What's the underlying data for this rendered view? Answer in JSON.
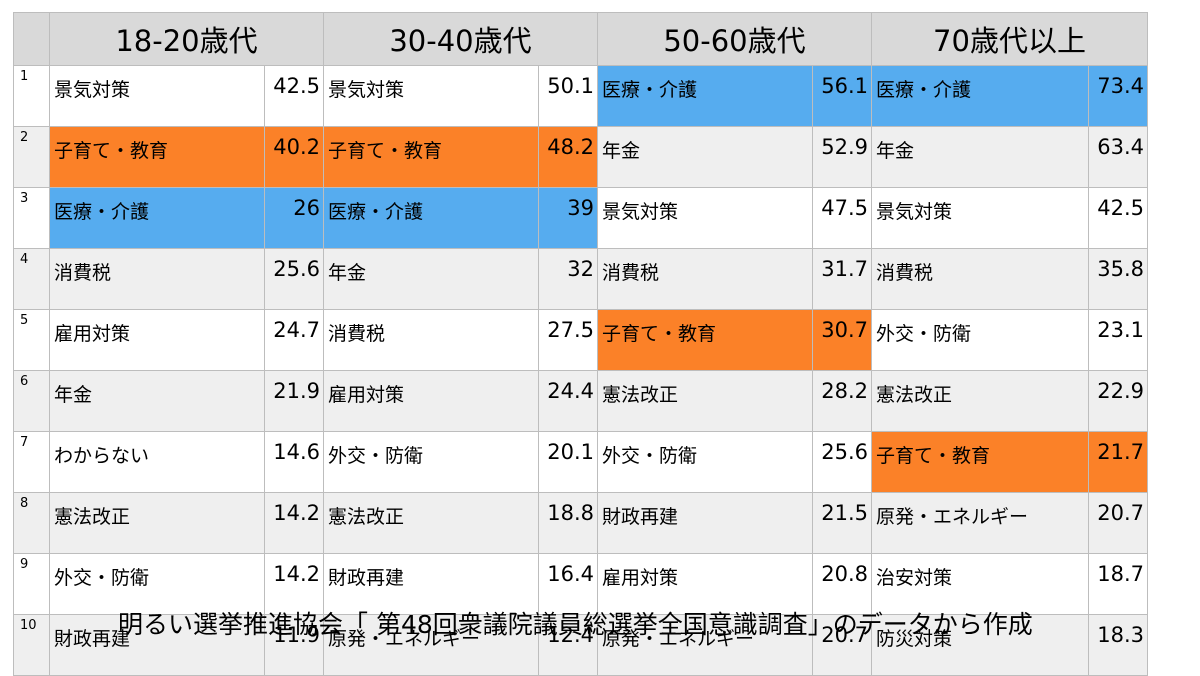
{
  "chart_data": {
    "type": "table",
    "title": "",
    "columns": [
      "18-20歳代",
      "30-40歳代",
      "50-60歳代",
      "70歳代以上"
    ],
    "ranks": [
      "1",
      "2",
      "3",
      "4",
      "5",
      "6",
      "7",
      "8",
      "9",
      "10"
    ],
    "series": [
      {
        "name": "18-20歳代",
        "rows": [
          {
            "item": "景気対策",
            "value": "42.5"
          },
          {
            "item": "子育て・教育",
            "value": "40.2"
          },
          {
            "item": "医療・介護",
            "value": "26"
          },
          {
            "item": "消費税",
            "value": "25.6"
          },
          {
            "item": "雇用対策",
            "value": "24.7"
          },
          {
            "item": "年金",
            "value": "21.9"
          },
          {
            "item": "わからない",
            "value": "14.6"
          },
          {
            "item": "憲法改正",
            "value": "14.2"
          },
          {
            "item": "外交・防衛",
            "value": "14.2"
          },
          {
            "item": "財政再建",
            "value": "11.9"
          }
        ]
      },
      {
        "name": "30-40歳代",
        "rows": [
          {
            "item": "景気対策",
            "value": "50.1"
          },
          {
            "item": "子育て・教育",
            "value": "48.2"
          },
          {
            "item": "医療・介護",
            "value": "39"
          },
          {
            "item": "年金",
            "value": "32"
          },
          {
            "item": "消費税",
            "value": "27.5"
          },
          {
            "item": "雇用対策",
            "value": "24.4"
          },
          {
            "item": "外交・防衛",
            "value": "20.1"
          },
          {
            "item": "憲法改正",
            "value": "18.8"
          },
          {
            "item": "財政再建",
            "value": "16.4"
          },
          {
            "item": "原発・エネルギー",
            "value": "12.4"
          }
        ]
      },
      {
        "name": "50-60歳代",
        "rows": [
          {
            "item": "医療・介護",
            "value": "56.1"
          },
          {
            "item": "年金",
            "value": "52.9"
          },
          {
            "item": "景気対策",
            "value": "47.5"
          },
          {
            "item": "消費税",
            "value": "31.7"
          },
          {
            "item": "子育て・教育",
            "value": "30.7"
          },
          {
            "item": "憲法改正",
            "value": "28.2"
          },
          {
            "item": "外交・防衛",
            "value": "25.6"
          },
          {
            "item": "財政再建",
            "value": "21.5"
          },
          {
            "item": "雇用対策",
            "value": "20.8"
          },
          {
            "item": "原発・エネルギー",
            "value": "20.7"
          }
        ]
      },
      {
        "name": "70歳代以上",
        "rows": [
          {
            "item": "医療・介護",
            "value": "73.4"
          },
          {
            "item": "年金",
            "value": "63.4"
          },
          {
            "item": "景気対策",
            "value": "42.5"
          },
          {
            "item": "消費税",
            "value": "35.8"
          },
          {
            "item": "外交・防衛",
            "value": "23.1"
          },
          {
            "item": "憲法改正",
            "value": "22.9"
          },
          {
            "item": "子育て・教育",
            "value": "21.7"
          },
          {
            "item": "原発・エネルギー",
            "value": "20.7"
          },
          {
            "item": "治安対策",
            "value": "18.7"
          },
          {
            "item": "防災対策",
            "value": "18.3"
          }
        ]
      }
    ],
    "highlights": {
      "子育て・教育": "#fb8128",
      "医療・介護": "#56acef"
    }
  },
  "colors": {
    "header_bg": "#d9d9d9",
    "row_odd": "#ffffff",
    "row_even": "#efefef",
    "orange_highlight": "#fb8128",
    "blue_highlight": "#56acef"
  },
  "caption": "明るい選挙推進協会「 第48回衆議院議員総選挙全国意識調査」のデータから作成"
}
